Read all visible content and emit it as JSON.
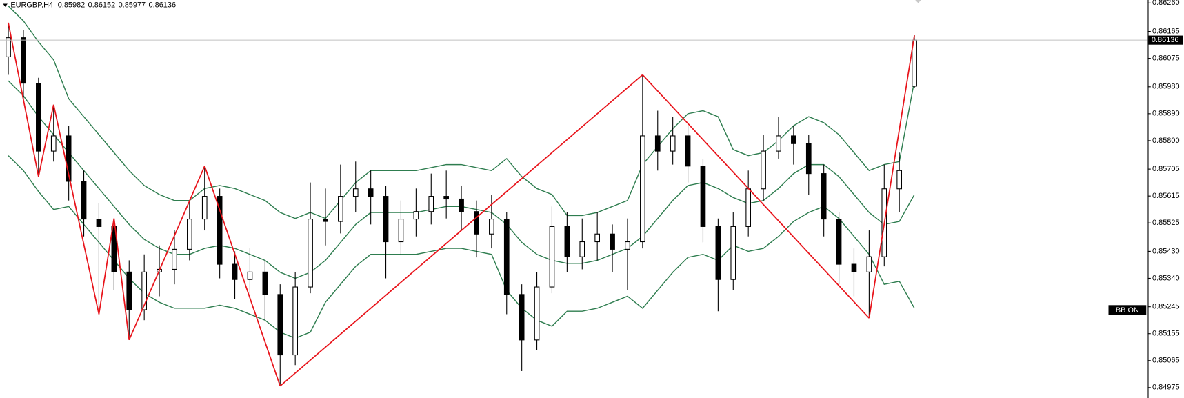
{
  "chart_data": {
    "type": "candlestick",
    "symbol": "EURGBP,H4",
    "candle_color": "#000000",
    "open": [
      0.8608,
      0.86144,
      0.85992,
      0.85765,
      0.85816,
      0.85664,
      0.85538,
      0.85513,
      0.85361,
      0.85235,
      0.85361,
      0.8537,
      0.85437,
      0.85538,
      0.85614,
      0.85387,
      0.85336,
      0.85361,
      0.85286,
      0.85084,
      0.85311,
      0.85538,
      0.8553,
      0.85614,
      0.85639,
      0.85614,
      0.85462,
      0.85538,
      0.85563,
      0.85614,
      0.85605,
      0.85563,
      0.85488,
      0.85538,
      0.85286,
      0.85134,
      0.85311,
      0.85513,
      0.85412,
      0.85462,
      0.85488,
      0.85437,
      0.85462,
      0.85816,
      0.85765,
      0.85816,
      0.85715,
      0.85513,
      0.85336,
      0.85513,
      0.85639,
      0.85765,
      0.85816,
      0.8579,
      0.8569,
      0.85538,
      0.85387,
      0.85361,
      0.85412,
      0.85639,
      0.85982
    ],
    "high": [
      0.86194,
      0.8617,
      0.8601,
      0.8592,
      0.8585,
      0.857,
      0.8559,
      0.8554,
      0.854,
      0.8542,
      0.8545,
      0.855,
      0.856,
      0.85715,
      0.8564,
      0.8543,
      0.8544,
      0.854,
      0.8532,
      0.8536,
      0.8566,
      0.8564,
      0.8572,
      0.8573,
      0.857,
      0.8565,
      0.856,
      0.8564,
      0.8569,
      0.857,
      0.8565,
      0.856,
      0.8562,
      0.8556,
      0.8532,
      0.8536,
      0.8558,
      0.8556,
      0.8554,
      0.8556,
      0.8552,
      0.8554,
      0.8602,
      0.859,
      0.8588,
      0.8585,
      0.8574,
      0.8554,
      0.8556,
      0.857,
      0.8582,
      0.8588,
      0.8585,
      0.8582,
      0.8572,
      0.8556,
      0.8544,
      0.855,
      0.8572,
      0.8576,
      0.86152
    ],
    "low": [
      0.8602,
      0.8594,
      0.8568,
      0.8573,
      0.856,
      0.8548,
      0.8522,
      0.853,
      0.85134,
      0.852,
      0.8528,
      0.8532,
      0.854,
      0.855,
      0.8534,
      0.8527,
      0.8529,
      0.852,
      0.8498,
      0.8505,
      0.8529,
      0.8545,
      0.8549,
      0.8556,
      0.8552,
      0.8534,
      0.8542,
      0.8548,
      0.8552,
      0.8554,
      0.855,
      0.8541,
      0.8544,
      0.8522,
      0.8503,
      0.851,
      0.8529,
      0.8536,
      0.8537,
      0.854,
      0.8536,
      0.853,
      0.8544,
      0.857,
      0.8572,
      0.8566,
      0.8546,
      0.8523,
      0.853,
      0.8548,
      0.856,
      0.8574,
      0.8572,
      0.8562,
      0.8548,
      0.8532,
      0.8528,
      0.85207,
      0.8538,
      0.8556,
      0.85977
    ],
    "close": [
      0.86144,
      0.85992,
      0.85765,
      0.85816,
      0.85664,
      0.85538,
      0.85513,
      0.85361,
      0.85235,
      0.85361,
      0.8537,
      0.85437,
      0.85538,
      0.85614,
      0.85387,
      0.85336,
      0.85361,
      0.85286,
      0.85084,
      0.85311,
      0.85538,
      0.8553,
      0.85614,
      0.85639,
      0.85614,
      0.85462,
      0.85538,
      0.85563,
      0.85614,
      0.85605,
      0.85563,
      0.85488,
      0.85538,
      0.85286,
      0.85134,
      0.85311,
      0.85513,
      0.85412,
      0.85462,
      0.85488,
      0.85437,
      0.85462,
      0.85816,
      0.85765,
      0.85816,
      0.85715,
      0.85513,
      0.85336,
      0.85513,
      0.85639,
      0.85765,
      0.85816,
      0.8579,
      0.8569,
      0.85538,
      0.85387,
      0.85361,
      0.85412,
      0.85639,
      0.857,
      0.86136
    ],
    "bands": {
      "color": "#2e7d4f",
      "upper": [
        0.8625,
        0.862,
        0.8613,
        0.8607,
        0.8594,
        0.8588,
        0.8582,
        0.8576,
        0.857,
        0.8565,
        0.8562,
        0.856,
        0.856,
        0.8564,
        0.8565,
        0.8564,
        0.8562,
        0.856,
        0.8556,
        0.8554,
        0.8556,
        0.8554,
        0.856,
        0.8566,
        0.857,
        0.857,
        0.857,
        0.857,
        0.8571,
        0.8572,
        0.8572,
        0.8571,
        0.857,
        0.8574,
        0.8568,
        0.8564,
        0.8562,
        0.8555,
        0.8555,
        0.8556,
        0.8558,
        0.856,
        0.8572,
        0.8578,
        0.8584,
        0.8589,
        0.859,
        0.8588,
        0.8577,
        0.8575,
        0.8576,
        0.858,
        0.8585,
        0.8588,
        0.8586,
        0.8582,
        0.8576,
        0.857,
        0.8572,
        0.8573,
        0.86
      ],
      "middle": [
        0.86,
        0.8595,
        0.8588,
        0.8582,
        0.8576,
        0.857,
        0.8564,
        0.8558,
        0.8552,
        0.8547,
        0.8544,
        0.8542,
        0.8542,
        0.8544,
        0.8545,
        0.8544,
        0.8542,
        0.854,
        0.8536,
        0.8534,
        0.8536,
        0.854,
        0.8546,
        0.8552,
        0.8556,
        0.8556,
        0.8556,
        0.8556,
        0.8557,
        0.8558,
        0.8558,
        0.8557,
        0.8556,
        0.8552,
        0.8546,
        0.8542,
        0.854,
        0.8539,
        0.8539,
        0.854,
        0.8542,
        0.8544,
        0.8548,
        0.8554,
        0.856,
        0.8565,
        0.8566,
        0.8564,
        0.8561,
        0.8559,
        0.856,
        0.8564,
        0.8569,
        0.8572,
        0.8572,
        0.8568,
        0.8562,
        0.8556,
        0.8552,
        0.8553,
        0.8562
      ],
      "lower": [
        0.8575,
        0.857,
        0.8563,
        0.8557,
        0.8558,
        0.8552,
        0.8546,
        0.854,
        0.8534,
        0.8529,
        0.8526,
        0.8524,
        0.8524,
        0.8524,
        0.8525,
        0.8524,
        0.8522,
        0.852,
        0.8516,
        0.8514,
        0.8516,
        0.8526,
        0.8532,
        0.8538,
        0.8542,
        0.8542,
        0.8542,
        0.8542,
        0.8543,
        0.8544,
        0.8544,
        0.8543,
        0.8542,
        0.853,
        0.8524,
        0.852,
        0.8518,
        0.8523,
        0.8523,
        0.8524,
        0.8526,
        0.8528,
        0.8524,
        0.853,
        0.8536,
        0.8541,
        0.8542,
        0.854,
        0.8545,
        0.8543,
        0.8544,
        0.8548,
        0.8553,
        0.8556,
        0.8558,
        0.8554,
        0.8548,
        0.8542,
        0.8532,
        0.8533,
        0.8524
      ]
    },
    "zigzag": {
      "color": "#e8141b",
      "values": [
        0.86194,
        null,
        0.8568,
        0.8592,
        null,
        null,
        0.8522,
        0.8554,
        0.85134,
        null,
        null,
        null,
        null,
        0.85715,
        null,
        null,
        null,
        null,
        0.8498,
        null,
        null,
        null,
        null,
        null,
        null,
        null,
        null,
        null,
        null,
        null,
        null,
        null,
        null,
        null,
        null,
        null,
        null,
        null,
        null,
        null,
        null,
        null,
        0.8602,
        null,
        null,
        null,
        null,
        null,
        null,
        null,
        null,
        null,
        null,
        null,
        null,
        null,
        null,
        0.85207,
        null,
        null,
        0.86152
      ]
    },
    "indicator_label": "BB ON",
    "ylim": [
      0.8494,
      0.8627
    ],
    "yticks": [
      {
        "value": 0.8626,
        "label": "0.86260"
      },
      0.86165,
      0.86075,
      {
        "value": 0.8598,
        "label": "0.85980"
      },
      {
        "value": 0.8589,
        "label": "0.85890"
      },
      {
        "value": 0.858,
        "label": "0.85800"
      },
      0.85705,
      0.85615,
      0.85525,
      {
        "value": 0.8543,
        "label": "0.85430"
      },
      {
        "value": 0.8534,
        "label": "0.85340"
      },
      0.85245,
      0.85155,
      0.85065,
      0.84975
    ]
  }
}
